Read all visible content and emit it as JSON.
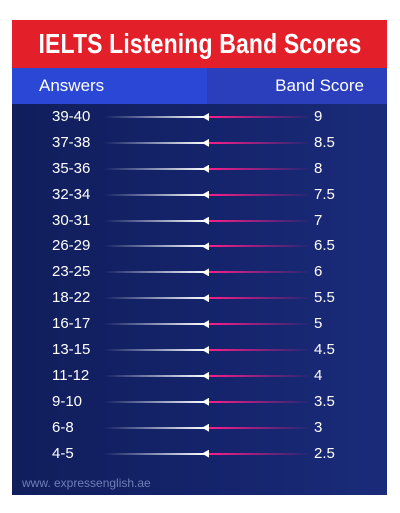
{
  "title": "IELTS Listening Band Scores",
  "header": {
    "answers": "Answers",
    "band_score": "Band Score"
  },
  "rows": [
    {
      "answers": "39-40",
      "score": "9"
    },
    {
      "answers": "37-38",
      "score": "8.5"
    },
    {
      "answers": "35-36",
      "score": "8"
    },
    {
      "answers": "32-34",
      "score": "7.5"
    },
    {
      "answers": "30-31",
      "score": "7"
    },
    {
      "answers": "26-29",
      "score": "6.5"
    },
    {
      "answers": "23-25",
      "score": "6"
    },
    {
      "answers": "18-22",
      "score": "5.5"
    },
    {
      "answers": "16-17",
      "score": "5"
    },
    {
      "answers": "13-15",
      "score": "4.5"
    },
    {
      "answers": "11-12",
      "score": "4"
    },
    {
      "answers": "9-10",
      "score": "3.5"
    },
    {
      "answers": "6-8",
      "score": "3"
    },
    {
      "answers": "4-5",
      "score": "2.5"
    }
  ],
  "footer": "www. expressenglish.ae",
  "colors": {
    "title_bg": "#e3202a",
    "header_bg": "#2a47d6",
    "card_bg": "#14236a",
    "accent_line": "#ff1f8a"
  }
}
